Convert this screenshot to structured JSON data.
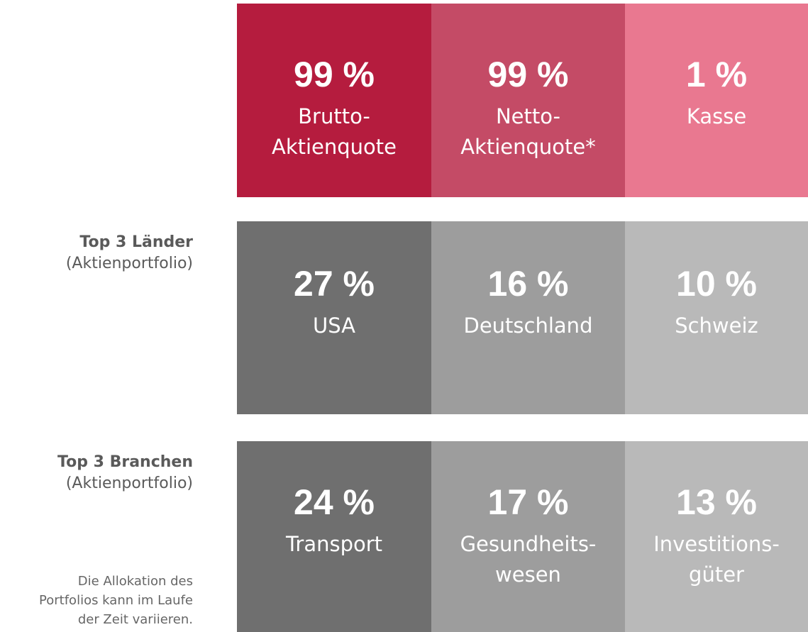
{
  "rows": [
    {
      "tiles": [
        {
          "value": "99 %",
          "label": [
            "Brutto-",
            "Aktienquote"
          ],
          "color": "#b51c3e"
        },
        {
          "value": "99 %",
          "label": [
            "Netto-",
            "Aktienquote*"
          ],
          "color": "#c44b66"
        },
        {
          "value": "1 %",
          "label": [
            "Kasse"
          ],
          "color": "#e97890"
        }
      ]
    },
    {
      "title": "Top 3 Länder",
      "subtitle": "(Aktienportfolio)",
      "tiles": [
        {
          "value": "27 %",
          "label": [
            "USA"
          ],
          "color": "#6f6f6f"
        },
        {
          "value": "16 %",
          "label": [
            "Deutschland"
          ],
          "color": "#9d9d9d"
        },
        {
          "value": "10 %",
          "label": [
            "Schweiz"
          ],
          "color": "#b9b9b9"
        }
      ]
    },
    {
      "title": "Top 3 Branchen",
      "subtitle": "(Aktienportfolio)",
      "tiles": [
        {
          "value": "24 %",
          "label": [
            "Transport"
          ],
          "color": "#6f6f6f"
        },
        {
          "value": "17 %",
          "label": [
            "Gesundheits-",
            "wesen"
          ],
          "color": "#9d9d9d"
        },
        {
          "value": "13 %",
          "label": [
            "Investitions-",
            "güter"
          ],
          "color": "#b9b9b9"
        }
      ]
    }
  ],
  "footnote": [
    "Die Allokation des",
    "Portfolios kann im Laufe",
    "der Zeit variieren."
  ]
}
